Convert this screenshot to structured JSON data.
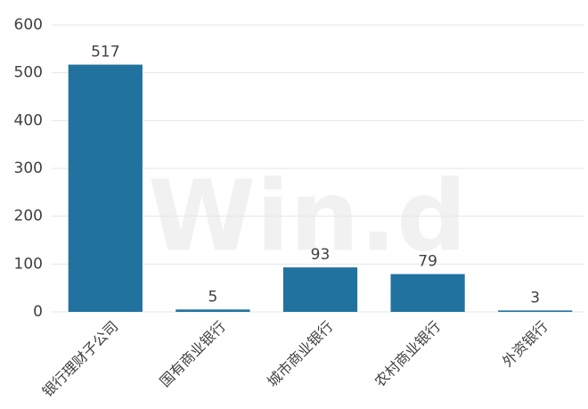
{
  "chart_data": {
    "type": "bar",
    "categories": [
      "银行理财子公司",
      "国有商业银行",
      "城市商业银行",
      "农村商业银行",
      "外资银行"
    ],
    "values": [
      517,
      5,
      93,
      79,
      3
    ],
    "color": "#21729f",
    "ylim": [
      0,
      600
    ],
    "yticks": [
      0,
      100,
      200,
      300,
      400,
      500,
      600
    ],
    "grid": true,
    "watermark": "Win.d"
  }
}
